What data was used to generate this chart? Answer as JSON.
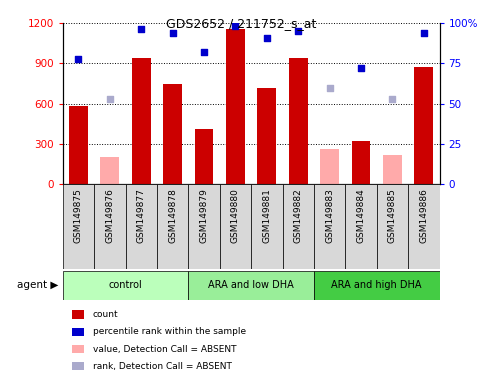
{
  "title": "GDS2652 / 211752_s_at",
  "samples": [
    "GSM149875",
    "GSM149876",
    "GSM149877",
    "GSM149878",
    "GSM149879",
    "GSM149880",
    "GSM149881",
    "GSM149882",
    "GSM149883",
    "GSM149884",
    "GSM149885",
    "GSM149886"
  ],
  "count_values": [
    580,
    null,
    940,
    750,
    415,
    1155,
    720,
    940,
    null,
    320,
    null,
    870
  ],
  "count_absent": [
    null,
    205,
    null,
    null,
    null,
    null,
    null,
    null,
    260,
    null,
    215,
    null
  ],
  "percentile_values": [
    78,
    null,
    96,
    94,
    82,
    98,
    91,
    95,
    null,
    72,
    null,
    94
  ],
  "percentile_absent": [
    null,
    53,
    null,
    null,
    null,
    null,
    null,
    null,
    60,
    null,
    53,
    null
  ],
  "groups": [
    {
      "label": "control",
      "start": 0,
      "end": 4,
      "color": "#bbffbb"
    },
    {
      "label": "ARA and low DHA",
      "start": 4,
      "end": 8,
      "color": "#99ee99"
    },
    {
      "label": "ARA and high DHA",
      "start": 8,
      "end": 12,
      "color": "#44cc44"
    }
  ],
  "ylim_left": [
    0,
    1200
  ],
  "ylim_right": [
    0,
    100
  ],
  "yticks_left": [
    0,
    300,
    600,
    900,
    1200
  ],
  "yticks_right": [
    0,
    25,
    50,
    75,
    100
  ],
  "bar_color_present": "#cc0000",
  "bar_color_absent": "#ffaaaa",
  "dot_color_present": "#0000cc",
  "dot_color_absent": "#aaaacc",
  "legend_labels": [
    "count",
    "percentile rank within the sample",
    "value, Detection Call = ABSENT",
    "rank, Detection Call = ABSENT"
  ]
}
